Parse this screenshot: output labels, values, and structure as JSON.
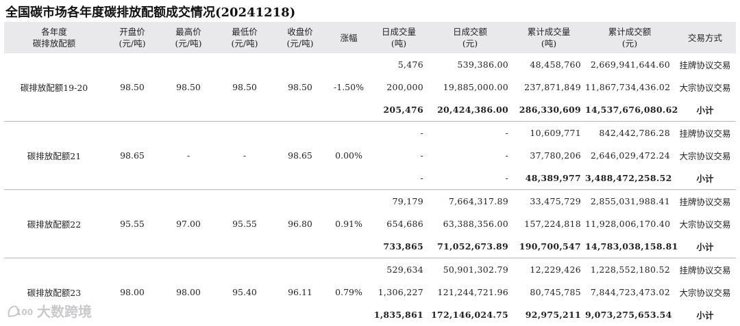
{
  "title": "全国碳市场各年度碳排放配额成交情况(20241218)",
  "headers": [
    [
      "各年度",
      "碳排放配额"
    ],
    [
      "开盘价",
      "(元/吨)"
    ],
    [
      "最高价",
      "(元/吨)"
    ],
    [
      "最低价",
      "(元/吨)"
    ],
    [
      "收盘价",
      "(元/吨)"
    ],
    [
      "涨幅"
    ],
    [
      "日成交量",
      "(吨)"
    ],
    [
      "日成交额",
      "(元)"
    ],
    [
      "累计成交量",
      "(吨)"
    ],
    [
      "累计成交额",
      "(元)"
    ],
    [
      "交易方式"
    ]
  ],
  "groups": [
    {
      "name": "碳排放配额19-20",
      "open": "98.50",
      "high": "98.50",
      "low": "98.50",
      "close": "98.50",
      "change": "-1.50%",
      "rows": [
        {
          "day_volume": "5,476",
          "day_amount": "539,386.00",
          "cum_volume": "48,458,760",
          "cum_amount": "2,669,941,644.60",
          "method": "挂牌协议交易"
        },
        {
          "day_volume": "200,000",
          "day_amount": "19,885,000.00",
          "cum_volume": "237,871,849",
          "cum_amount": "11,867,734,436.02",
          "method": "大宗协议交易"
        },
        {
          "day_volume": "205,476",
          "day_amount": "20,424,386.00",
          "cum_volume": "286,330,609",
          "cum_amount": "14,537,676,080.62",
          "method": "小计"
        }
      ]
    },
    {
      "name": "碳排放配额21",
      "open": "98.65",
      "high": "-",
      "low": "-",
      "close": "98.65",
      "change": "0.00%",
      "rows": [
        {
          "day_volume": "-",
          "day_amount": "-",
          "cum_volume": "10,609,771",
          "cum_amount": "842,442,786.28",
          "method": "挂牌协议交易"
        },
        {
          "day_volume": "-",
          "day_amount": "-",
          "cum_volume": "37,780,206",
          "cum_amount": "2,646,029,472.24",
          "method": "大宗协议交易"
        },
        {
          "day_volume": "-",
          "day_amount": "-",
          "cum_volume": "48,389,977",
          "cum_amount": "3,488,472,258.52",
          "method": "小计"
        }
      ]
    },
    {
      "name": "碳排放配额22",
      "open": "95.55",
      "high": "97.00",
      "low": "95.55",
      "close": "96.80",
      "change": "0.91%",
      "rows": [
        {
          "day_volume": "79,179",
          "day_amount": "7,664,317.89",
          "cum_volume": "33,475,729",
          "cum_amount": "2,855,031,988.41",
          "method": "挂牌协议交易"
        },
        {
          "day_volume": "654,686",
          "day_amount": "63,388,356.00",
          "cum_volume": "157,224,818",
          "cum_amount": "11,928,006,170.40",
          "method": "大宗协议交易"
        },
        {
          "day_volume": "733,865",
          "day_amount": "71,052,673.89",
          "cum_volume": "190,700,547",
          "cum_amount": "14,783,038,158.81",
          "method": "小计"
        }
      ]
    },
    {
      "name": "碳排放配额23",
      "open": "98.00",
      "high": "98.00",
      "low": "95.40",
      "close": "96.11",
      "change": "0.79%",
      "rows": [
        {
          "day_volume": "529,634",
          "day_amount": "50,901,302.79",
          "cum_volume": "12,229,426",
          "cum_amount": "1,228,552,180.52",
          "method": "挂牌协议交易"
        },
        {
          "day_volume": "1,306,227",
          "day_amount": "121,244,721.96",
          "cum_volume": "80,745,785",
          "cum_amount": "7,844,723,473.02",
          "method": "大宗协议交易"
        },
        {
          "day_volume": "1,835,861",
          "day_amount": "172,146,024.75",
          "cum_volume": "92,975,211",
          "cum_amount": "9,073,275,653.54",
          "method": "小计"
        }
      ]
    }
  ],
  "watermark": {
    "text": "大数跨境",
    "logo_text": "100"
  }
}
